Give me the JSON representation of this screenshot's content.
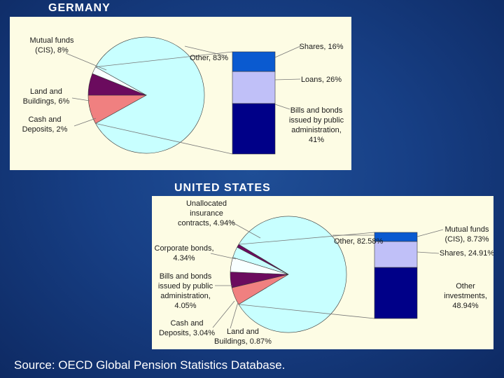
{
  "slide": {
    "source": "Source: OECD Global Pension Statistics Database."
  },
  "chart_data": [
    {
      "type": "pie",
      "title": "GERMANY",
      "colors": {
        "background": "#fdfce4",
        "other": "#c8ffff",
        "red": "#f08080",
        "purple": "#6b0b5e",
        "lightblue": "#c0c0f8",
        "blue": "#0a5ad0",
        "navy": "#000088"
      },
      "pie": {
        "slices": [
          {
            "label": "Other, 83%",
            "value": 83,
            "color": "#c8ffff"
          },
          {
            "label": "Mutual funds\n(CIS), 8%",
            "value": 8,
            "color": "#f08080"
          },
          {
            "label": "Land and\nBuildings, 6%",
            "value": 6,
            "color": "#6b0b5e"
          },
          {
            "label": "Cash and\nDeposits, 2%",
            "value": 2,
            "color": "#f8ffff"
          }
        ]
      },
      "bar": {
        "of": "Other, 83%",
        "segments": [
          {
            "label": "Shares, 16%",
            "value": 16,
            "color": "#0a5ad0"
          },
          {
            "label": "Loans, 26%",
            "value": 26,
            "color": "#c0c0f8"
          },
          {
            "label": "Bills and bonds\nissued by public\nadministration,\n41%",
            "value": 41,
            "color": "#000088"
          }
        ]
      }
    },
    {
      "type": "pie",
      "title": "UNITED STATES",
      "pie": {
        "slices": [
          {
            "label": "Other, 82.58%",
            "value": 82.58,
            "color": "#c8ffff"
          },
          {
            "label": "Unallocated\ninsurance\ncontracts, 4.94%",
            "value": 4.94,
            "color": "#f08080"
          },
          {
            "label": "Corporate bonds,\n4.34%",
            "value": 4.34,
            "color": "#6b0b5e"
          },
          {
            "label": "Bills and bonds\nissued by public\nadministration,\n4.05%",
            "value": 4.05,
            "color": "#f8ffff"
          },
          {
            "label": "Cash and\nDeposits, 3.04%",
            "value": 3.04,
            "color": "#c8ffff"
          },
          {
            "label": "Land and\nBuildings, 0.87%",
            "value": 0.87,
            "color": "#6b0b5e"
          }
        ]
      },
      "bar": {
        "of": "Other, 82.58%",
        "segments": [
          {
            "label": "Mutual funds\n(CIS), 8.73%",
            "value": 8.73,
            "color": "#0a5ad0"
          },
          {
            "label": "Shares, 24.91%",
            "value": 24.91,
            "color": "#c0c0f8"
          },
          {
            "label": "Other\ninvestments,\n48.94%",
            "value": 48.94,
            "color": "#000088"
          }
        ]
      }
    }
  ]
}
